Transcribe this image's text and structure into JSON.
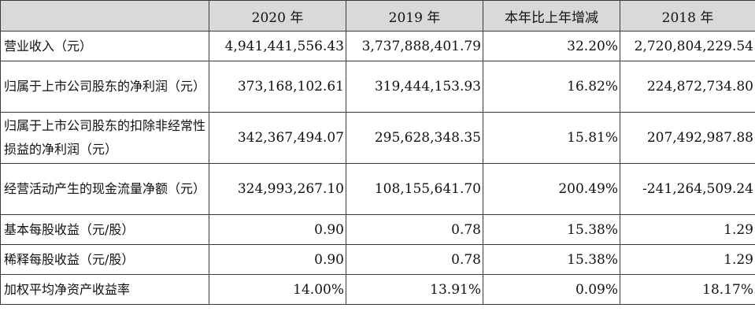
{
  "header": {
    "col0": "",
    "col1": "2020 年",
    "col2": "2019 年",
    "col3": "本年比上年增减",
    "col4": "2018 年"
  },
  "rows": [
    {
      "label": "营业收入（元）",
      "v2020": "4,941,441,556.43",
      "v2019": "3,737,888,401.79",
      "change": "32.20%",
      "v2018": "2,720,804,229.54"
    },
    {
      "label": "归属于上市公司股东的净利润（元）",
      "v2020": "373,168,102.61",
      "v2019": "319,444,153.93",
      "change": "16.82%",
      "v2018": "224,872,734.80"
    },
    {
      "label": "归属于上市公司股东的扣除非经常性损益的净利润（元）",
      "v2020": "342,367,494.07",
      "v2019": "295,628,348.35",
      "change": "15.81%",
      "v2018": "207,492,987.88"
    },
    {
      "label": "经营活动产生的现金流量净额（元）",
      "v2020": "324,993,267.10",
      "v2019": "108,155,641.70",
      "change": "200.49%",
      "v2018": "-241,264,509.24"
    },
    {
      "label": "基本每股收益（元/股）",
      "v2020": "0.90",
      "v2019": "0.78",
      "change": "15.38%",
      "v2018": "1.29"
    },
    {
      "label": "稀释每股收益（元/股）",
      "v2020": "0.90",
      "v2019": "0.78",
      "change": "15.38%",
      "v2018": "1.29"
    },
    {
      "label": "加权平均净资产收益率",
      "v2020": "14.00%",
      "v2019": "13.91%",
      "change": "0.09%",
      "v2018": "18.17%"
    }
  ]
}
